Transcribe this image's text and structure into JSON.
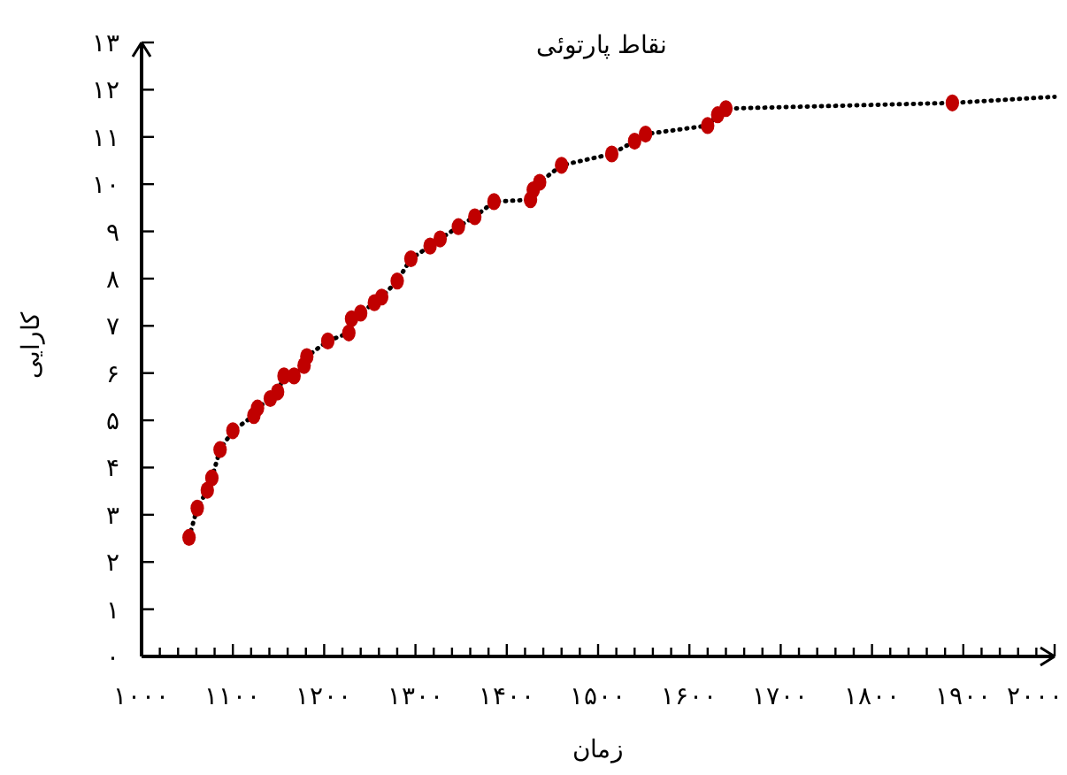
{
  "chart_data": {
    "type": "scatter",
    "title": "نقاط پارتوئی",
    "xlabel": "زمان",
    "ylabel": "کارایی",
    "xlim": [
      1000,
      2000
    ],
    "ylim": [
      0,
      13
    ],
    "xticks": [
      {
        "value": 1000,
        "label": "۱۰۰۰"
      },
      {
        "value": 1020,
        "label": null
      },
      {
        "value": 1040,
        "label": null
      },
      {
        "value": 1060,
        "label": null
      },
      {
        "value": 1080,
        "label": null
      },
      {
        "value": 1100,
        "label": "۱۱۰۰"
      },
      {
        "value": 1120,
        "label": null
      },
      {
        "value": 1140,
        "label": null
      },
      {
        "value": 1160,
        "label": null
      },
      {
        "value": 1180,
        "label": null
      },
      {
        "value": 1200,
        "label": "۱۲۰۰"
      },
      {
        "value": 1220,
        "label": null
      },
      {
        "value": 1240,
        "label": null
      },
      {
        "value": 1260,
        "label": null
      },
      {
        "value": 1280,
        "label": null
      },
      {
        "value": 1300,
        "label": "۱۳۰۰"
      },
      {
        "value": 1320,
        "label": null
      },
      {
        "value": 1340,
        "label": null
      },
      {
        "value": 1360,
        "label": null
      },
      {
        "value": 1380,
        "label": null
      },
      {
        "value": 1400,
        "label": "۱۴۰۰"
      },
      {
        "value": 1420,
        "label": null
      },
      {
        "value": 1440,
        "label": null
      },
      {
        "value": 1460,
        "label": null
      },
      {
        "value": 1480,
        "label": null
      },
      {
        "value": 1500,
        "label": "۱۵۰۰"
      },
      {
        "value": 1520,
        "label": null
      },
      {
        "value": 1540,
        "label": null
      },
      {
        "value": 1560,
        "label": null
      },
      {
        "value": 1580,
        "label": null
      },
      {
        "value": 1600,
        "label": "۱۶۰۰"
      },
      {
        "value": 1620,
        "label": null
      },
      {
        "value": 1640,
        "label": null
      },
      {
        "value": 1660,
        "label": null
      },
      {
        "value": 1680,
        "label": null
      },
      {
        "value": 1700,
        "label": "۱۷۰۰"
      },
      {
        "value": 1720,
        "label": null
      },
      {
        "value": 1740,
        "label": null
      },
      {
        "value": 1760,
        "label": null
      },
      {
        "value": 1780,
        "label": null
      },
      {
        "value": 1800,
        "label": "۱۸۰۰"
      },
      {
        "value": 1820,
        "label": null
      },
      {
        "value": 1840,
        "label": null
      },
      {
        "value": 1860,
        "label": null
      },
      {
        "value": 1880,
        "label": null
      },
      {
        "value": 1900,
        "label": "۱۹۰۰"
      },
      {
        "value": 1920,
        "label": null
      },
      {
        "value": 1940,
        "label": null
      },
      {
        "value": 1960,
        "label": null
      },
      {
        "value": 1980,
        "label": null
      },
      {
        "value": 2000,
        "label": "۲۰۰۰"
      }
    ],
    "yticks": [
      {
        "value": 0,
        "label": "۰"
      },
      {
        "value": 1,
        "label": "۱"
      },
      {
        "value": 2,
        "label": "۲"
      },
      {
        "value": 3,
        "label": "۳"
      },
      {
        "value": 4,
        "label": "۴"
      },
      {
        "value": 5,
        "label": "۵"
      },
      {
        "value": 6,
        "label": "۶"
      },
      {
        "value": 7,
        "label": "۷"
      },
      {
        "value": 8,
        "label": "۸"
      },
      {
        "value": 9,
        "label": "۹"
      },
      {
        "value": 10,
        "label": "۱۰"
      },
      {
        "value": 11,
        "label": "۱۱"
      },
      {
        "value": 12,
        "label": "۱۲"
      },
      {
        "value": 13,
        "label": "۱۳"
      }
    ],
    "grid": false,
    "series": [
      {
        "type": "line",
        "color": "#000000",
        "line_style": "dotted",
        "marker": "none",
        "x": [
          1052,
          1061,
          1072,
          1077,
          1086,
          1100,
          1123,
          1127,
          1141,
          1149,
          1156,
          1167,
          1178,
          1181,
          1204,
          1227,
          1230,
          1240,
          1255,
          1263,
          1280,
          1295,
          1316,
          1327,
          1347,
          1365,
          1386,
          1426,
          1429,
          1436,
          1460,
          1515,
          1540,
          1552,
          1620,
          1631,
          1640,
          1888,
          2000
        ],
        "values": [
          2.52,
          3.14,
          3.52,
          3.78,
          4.38,
          4.78,
          5.1,
          5.26,
          5.46,
          5.6,
          5.94,
          5.94,
          6.16,
          6.35,
          6.68,
          6.85,
          7.15,
          7.27,
          7.49,
          7.61,
          7.95,
          8.42,
          8.69,
          8.84,
          9.1,
          9.31,
          9.63,
          9.67,
          9.88,
          10.04,
          10.4,
          10.64,
          10.91,
          11.06,
          11.24,
          11.47,
          11.6,
          11.72,
          11.85
        ]
      },
      {
        "type": "scatter",
        "color": "#c00000",
        "marker": "circle",
        "x": [
          1052,
          1061,
          1072,
          1077,
          1086,
          1100,
          1123,
          1127,
          1141,
          1149,
          1156,
          1167,
          1178,
          1181,
          1204,
          1227,
          1230,
          1240,
          1255,
          1263,
          1280,
          1295,
          1316,
          1327,
          1347,
          1365,
          1386,
          1426,
          1429,
          1436,
          1460,
          1515,
          1540,
          1552,
          1620,
          1631,
          1640,
          1888
        ],
        "values": [
          2.52,
          3.14,
          3.52,
          3.78,
          4.38,
          4.78,
          5.1,
          5.26,
          5.46,
          5.6,
          5.94,
          5.94,
          6.16,
          6.35,
          6.68,
          6.85,
          7.15,
          7.27,
          7.49,
          7.61,
          7.95,
          8.42,
          8.69,
          8.84,
          9.1,
          9.31,
          9.63,
          9.67,
          9.88,
          10.04,
          10.4,
          10.64,
          10.91,
          11.06,
          11.24,
          11.47,
          11.6,
          11.72
        ]
      }
    ]
  }
}
